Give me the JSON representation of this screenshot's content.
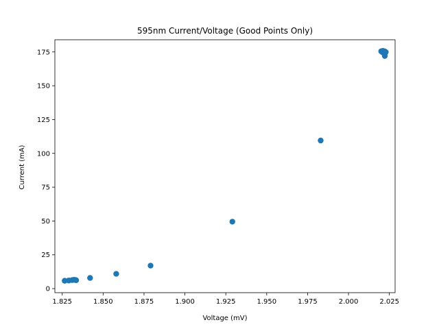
{
  "chart_data": {
    "type": "scatter",
    "title": "595nm Current/Voltage (Good Points Only)",
    "xlabel": "Voltage (mV)",
    "ylabel": "Current (mA)",
    "xlim": [
      1.8205,
      2.0285
    ],
    "ylim": [
      -3,
      184
    ],
    "xticks": [
      1.825,
      1.85,
      1.875,
      1.9,
      1.925,
      1.95,
      1.975,
      2.0,
      2.025
    ],
    "xtick_labels": [
      "1.825",
      "1.850",
      "1.875",
      "1.900",
      "1.925",
      "1.950",
      "1.975",
      "2.000",
      "2.025"
    ],
    "yticks": [
      0,
      25,
      50,
      75,
      100,
      125,
      150,
      175
    ],
    "ytick_labels": [
      "0",
      "25",
      "50",
      "75",
      "100",
      "125",
      "150",
      "175"
    ],
    "grid": false,
    "marker_color": "#1f77b4",
    "series": [
      {
        "points": [
          [
            1.8265,
            5.8
          ],
          [
            1.829,
            6.0
          ],
          [
            1.831,
            6.3
          ],
          [
            1.832,
            6.5
          ],
          [
            1.833,
            6.4
          ],
          [
            1.8335,
            6.2
          ],
          [
            1.842,
            7.9
          ],
          [
            1.858,
            10.9
          ],
          [
            1.879,
            17.0
          ],
          [
            1.929,
            49.5
          ],
          [
            1.983,
            109.5
          ],
          [
            2.02,
            175.5
          ],
          [
            2.0205,
            175.0
          ],
          [
            2.021,
            175.8
          ],
          [
            2.0212,
            174.5
          ],
          [
            2.0215,
            175.3
          ],
          [
            2.0218,
            174.8
          ],
          [
            2.022,
            175.5
          ],
          [
            2.0222,
            173.5
          ],
          [
            2.0222,
            172.0
          ],
          [
            2.0225,
            175.0
          ],
          [
            2.0228,
            174.9
          ]
        ]
      }
    ]
  }
}
